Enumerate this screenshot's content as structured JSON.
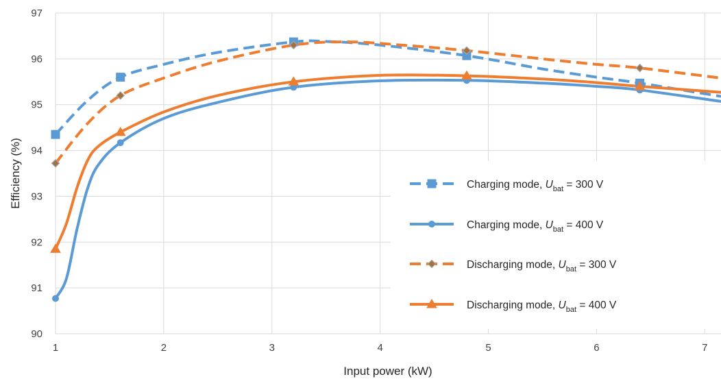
{
  "chart_data": {
    "type": "line",
    "xlabel": "Input power (kW)",
    "ylabel": "Efficiency (%)",
    "xlim": [
      1,
      7.15
    ],
    "ylim": [
      90,
      97
    ],
    "xticks": [
      1,
      2,
      3,
      4,
      5,
      6,
      7
    ],
    "yticks": [
      90,
      91,
      92,
      93,
      94,
      95,
      96,
      97
    ],
    "grid": true,
    "legend_position": "right",
    "series": [
      {
        "name_prefix": "Charging mode, ",
        "name_var": "U",
        "name_sub": "bat",
        "name_suffix": " = 300 V",
        "color": "#5B9BD5",
        "dash": true,
        "marker": "square",
        "points": [
          [
            1,
            94.35
          ],
          [
            1.6,
            95.6
          ],
          [
            3.2,
            96.37
          ],
          [
            4.8,
            96.07
          ],
          [
            6.4,
            95.47
          ]
        ],
        "curve": [
          [
            1,
            94.35
          ],
          [
            1.3,
            95.1
          ],
          [
            1.6,
            95.6
          ],
          [
            2.0,
            95.88
          ],
          [
            2.5,
            96.14
          ],
          [
            3.2,
            96.37
          ],
          [
            3.5,
            96.38
          ],
          [
            4.0,
            96.3
          ],
          [
            4.8,
            96.07
          ],
          [
            5.5,
            95.78
          ],
          [
            6.0,
            95.6
          ],
          [
            6.4,
            95.47
          ],
          [
            7.15,
            95.18
          ]
        ]
      },
      {
        "name_prefix": "Charging mode, ",
        "name_var": "U",
        "name_sub": "bat",
        "name_suffix": " = 400 V",
        "color": "#5B9BD5",
        "dash": false,
        "marker": "circle",
        "points": [
          [
            1,
            90.77
          ],
          [
            1.6,
            94.17
          ],
          [
            3.2,
            95.38
          ],
          [
            4.8,
            95.53
          ],
          [
            6.4,
            95.32
          ]
        ],
        "curve": [
          [
            1,
            90.77
          ],
          [
            1.1,
            91.2
          ],
          [
            1.2,
            92.3
          ],
          [
            1.3,
            93.2
          ],
          [
            1.4,
            93.7
          ],
          [
            1.6,
            94.17
          ],
          [
            2.0,
            94.7
          ],
          [
            2.5,
            95.05
          ],
          [
            3.2,
            95.38
          ],
          [
            4.0,
            95.52
          ],
          [
            4.8,
            95.53
          ],
          [
            5.5,
            95.47
          ],
          [
            6.0,
            95.4
          ],
          [
            6.4,
            95.32
          ],
          [
            7.15,
            95.07
          ]
        ]
      },
      {
        "name_prefix": "Discharging mode, ",
        "name_var": "U",
        "name_sub": "bat",
        "name_suffix": " = 300 V",
        "color": "#ED7D31",
        "dash": true,
        "marker": "diamond",
        "points": [
          [
            1,
            93.72
          ],
          [
            1.6,
            95.2
          ],
          [
            3.2,
            96.3
          ],
          [
            4.8,
            96.18
          ],
          [
            6.4,
            95.8
          ]
        ],
        "curve": [
          [
            1,
            93.72
          ],
          [
            1.3,
            94.6
          ],
          [
            1.6,
            95.2
          ],
          [
            2.0,
            95.58
          ],
          [
            2.5,
            95.95
          ],
          [
            3.2,
            96.3
          ],
          [
            3.7,
            96.37
          ],
          [
            4.2,
            96.3
          ],
          [
            4.8,
            96.18
          ],
          [
            5.5,
            96.0
          ],
          [
            6.0,
            95.88
          ],
          [
            6.4,
            95.8
          ],
          [
            7.15,
            95.58
          ]
        ]
      },
      {
        "name_prefix": "Discharging mode, ",
        "name_var": "U",
        "name_sub": "bat",
        "name_suffix": " = 400 V",
        "color": "#ED7D31",
        "dash": false,
        "marker": "triangle",
        "points": [
          [
            1,
            91.85
          ],
          [
            1.6,
            94.4
          ],
          [
            3.2,
            95.5
          ],
          [
            4.8,
            95.63
          ],
          [
            6.4,
            95.4
          ]
        ],
        "curve": [
          [
            1,
            91.85
          ],
          [
            1.1,
            92.4
          ],
          [
            1.2,
            93.2
          ],
          [
            1.3,
            93.8
          ],
          [
            1.4,
            94.1
          ],
          [
            1.6,
            94.4
          ],
          [
            2.0,
            94.84
          ],
          [
            2.5,
            95.2
          ],
          [
            3.2,
            95.5
          ],
          [
            4.0,
            95.64
          ],
          [
            4.8,
            95.63
          ],
          [
            5.5,
            95.56
          ],
          [
            6.0,
            95.48
          ],
          [
            6.4,
            95.4
          ],
          [
            7.15,
            95.27
          ]
        ]
      }
    ]
  }
}
